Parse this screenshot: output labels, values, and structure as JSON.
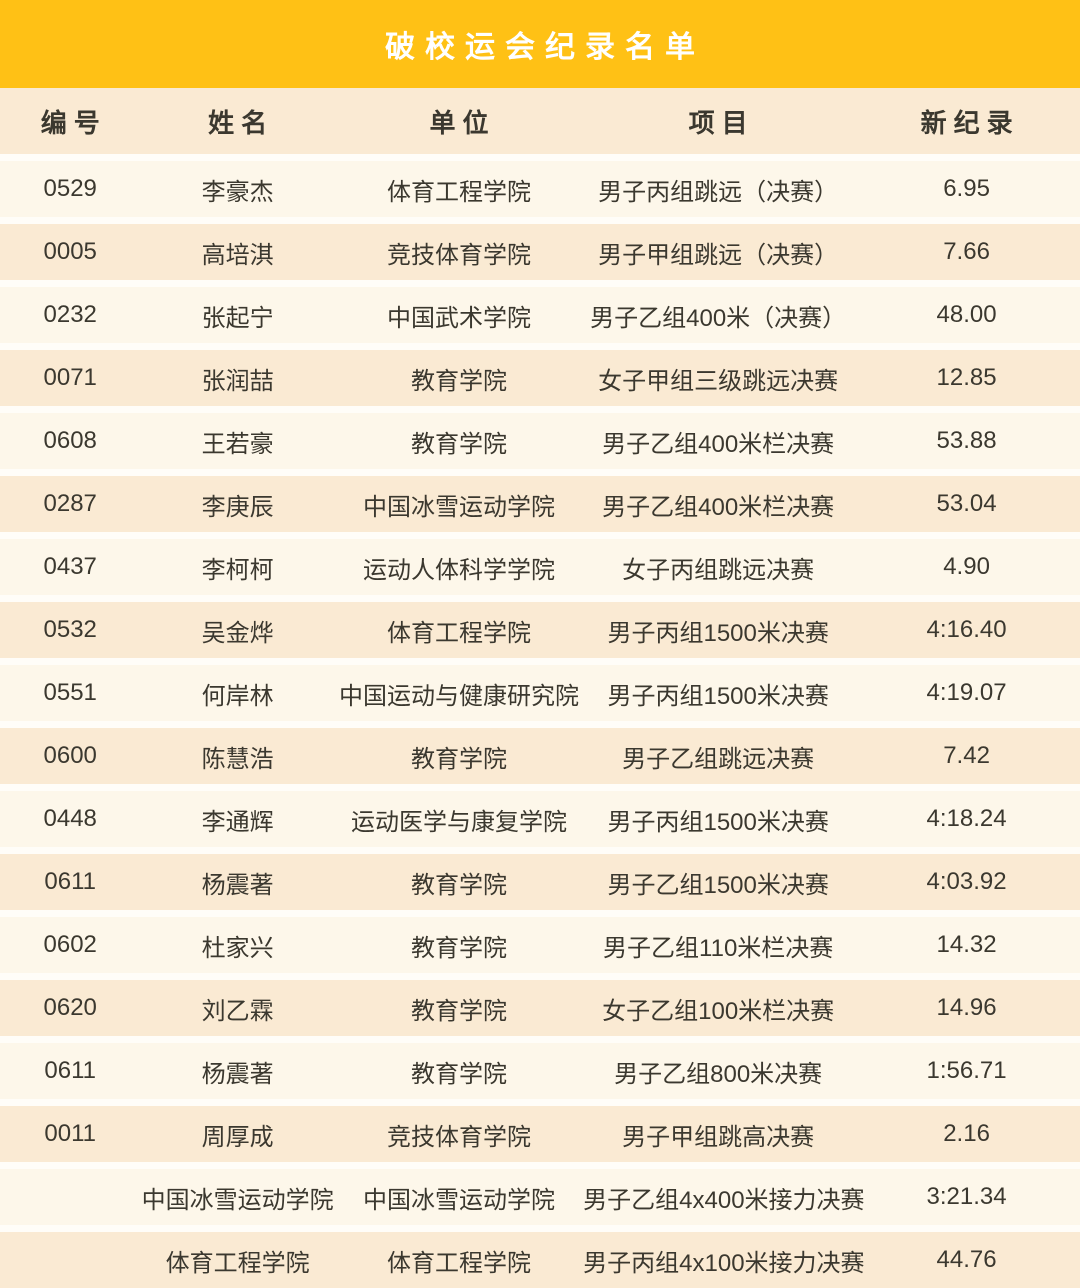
{
  "title": "破校运会纪录名单",
  "columns": [
    "编号",
    "姓名",
    "单位",
    "项目",
    "新纪录"
  ],
  "rows": [
    {
      "id": "0529",
      "name": "李豪杰",
      "unit": "体育工程学院",
      "event": "男子丙组跳远（决赛）",
      "record": "6.95"
    },
    {
      "id": "0005",
      "name": "高培淇",
      "unit": "竞技体育学院",
      "event": "男子甲组跳远（决赛）",
      "record": "7.66"
    },
    {
      "id": "0232",
      "name": "张起宁",
      "unit": "中国武术学院",
      "event": "男子乙组400米（决赛）",
      "record": "48.00"
    },
    {
      "id": "0071",
      "name": "张润喆",
      "unit": "教育学院",
      "event": "女子甲组三级跳远决赛",
      "record": "12.85"
    },
    {
      "id": "0608",
      "name": "王若豪",
      "unit": "教育学院",
      "event": "男子乙组400米栏决赛",
      "record": "53.88"
    },
    {
      "id": "0287",
      "name": "李庚辰",
      "unit": "中国冰雪运动学院",
      "event": "男子乙组400米栏决赛",
      "record": "53.04"
    },
    {
      "id": "0437",
      "name": "李柯柯",
      "unit": "运动人体科学学院",
      "event": "女子丙组跳远决赛",
      "record": "4.90"
    },
    {
      "id": "0532",
      "name": "吴金烨",
      "unit": "体育工程学院",
      "event": "男子丙组1500米决赛",
      "record": "4:16.40"
    },
    {
      "id": "0551",
      "name": "何岸林",
      "unit": "中国运动与健康研究院",
      "event": "男子丙组1500米决赛",
      "record": "4:19.07"
    },
    {
      "id": "0600",
      "name": "陈慧浩",
      "unit": "教育学院",
      "event": "男子乙组跳远决赛",
      "record": "7.42"
    },
    {
      "id": "0448",
      "name": "李通辉",
      "unit": "运动医学与康复学院",
      "event": "男子丙组1500米决赛",
      "record": "4:18.24"
    },
    {
      "id": "0611",
      "name": "杨震著",
      "unit": "教育学院",
      "event": "男子乙组1500米决赛",
      "record": "4:03.92"
    },
    {
      "id": "0602",
      "name": "杜家兴",
      "unit": "教育学院",
      "event": "男子乙组110米栏决赛",
      "record": "14.32"
    },
    {
      "id": "0620",
      "name": "刘乙霖",
      "unit": "教育学院",
      "event": "女子乙组100米栏决赛",
      "record": "14.96"
    },
    {
      "id": "0611",
      "name": "杨震著",
      "unit": "教育学院",
      "event": "男子乙组800米决赛",
      "record": "1:56.71"
    },
    {
      "id": "0011",
      "name": "周厚成",
      "unit": "竞技体育学院",
      "event": "男子甲组跳高决赛",
      "record": "2.16"
    },
    {
      "id": "",
      "name": "中国冰雪运动学院",
      "unit": "中国冰雪运动学院",
      "event": "男子乙组4x400米接力决赛",
      "record": "3:21.34"
    },
    {
      "id": "",
      "name": "体育工程学院",
      "unit": "体育工程学院",
      "event": "男子丙组4x100米接力决赛",
      "record": "44.76"
    }
  ],
  "colors": {
    "banner_bg": "#FFC115",
    "header_row_bg": "#FAEAD3",
    "row_light_bg": "#FDF7EA",
    "row_dark_bg": "#FAEAD3",
    "page_bg": "#FFFDF8",
    "text_color": "#3B382F",
    "title_color": "#FFFFFF"
  }
}
